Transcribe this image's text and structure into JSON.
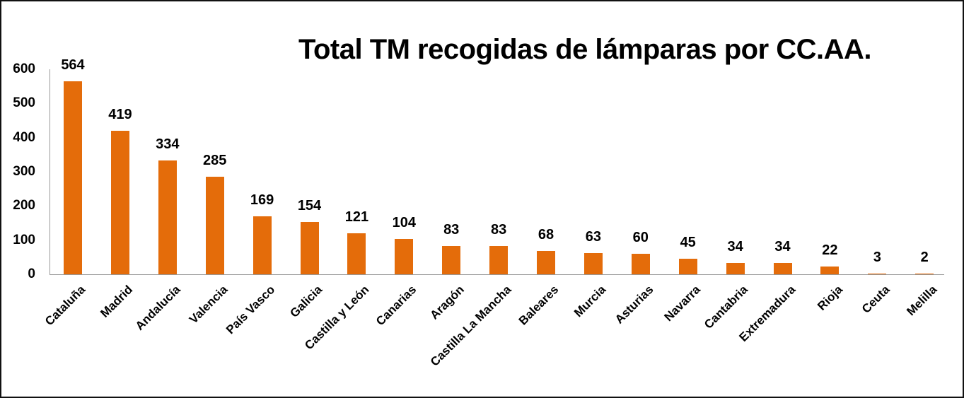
{
  "chart_data": {
    "type": "bar",
    "title": "Total TM recogidas de lámparas por CC.AA.",
    "xlabel": "",
    "ylabel": "",
    "ylim": [
      0,
      600
    ],
    "yticks": [
      0,
      100,
      200,
      300,
      400,
      500,
      600
    ],
    "grid": false,
    "legend": null,
    "bar_color": "#E46C0A",
    "categories": [
      "Cataluña",
      "Madrid",
      "Andalucía",
      "Valencia",
      "País Vasco",
      "Galicia",
      "Castilla y León",
      "Canarias",
      "Aragón",
      "Castilla La Mancha",
      "Baleares",
      "Murcia",
      "Asturias",
      "Navarra",
      "Cantabria",
      "Extremadura",
      "Rioja",
      "Ceuta",
      "Melilla"
    ],
    "values": [
      564,
      419,
      334,
      285,
      169,
      154,
      121,
      104,
      83,
      83,
      68,
      63,
      60,
      45,
      34,
      34,
      22,
      3,
      2
    ],
    "data_labels": [
      "564",
      "419",
      "334",
      "285",
      "169",
      "154",
      "121",
      "104",
      "83",
      "83",
      "68",
      "63",
      "60",
      "45",
      "34",
      "34",
      "22",
      "3",
      "2"
    ]
  }
}
